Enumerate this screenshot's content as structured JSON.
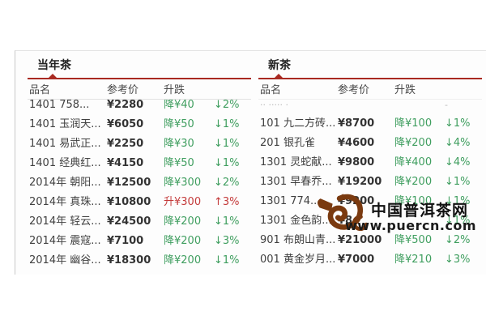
{
  "watermark": {
    "site_name": "中国普洱茶网",
    "site_url": "www.puercn.com",
    "logo": "teapot-dragon-logo"
  },
  "columns": {
    "name": "品名",
    "price": "参考价",
    "change": "升跌"
  },
  "glyphs": {
    "down_arrow": "↓",
    "up_arrow": "↑"
  },
  "colors": {
    "down": "#3f9e5f",
    "up": "#c43b3b",
    "tab_line": "#a92a22",
    "logo_brown": "#7a3a10"
  },
  "tables": [
    {
      "tab": "当年茶",
      "rows": [
        {
          "name": "1401 758...",
          "price": "¥2280",
          "change": "降¥40",
          "dir": "down",
          "pct": "2%"
        },
        {
          "name": "1401 玉润天...",
          "price": "¥6050",
          "change": "降¥50",
          "dir": "down",
          "pct": "1%"
        },
        {
          "name": "1401 易武正...",
          "price": "¥2250",
          "change": "降¥30",
          "dir": "down",
          "pct": "1%"
        },
        {
          "name": "1401 经典红...",
          "price": "¥4150",
          "change": "降¥50",
          "dir": "down",
          "pct": "1%"
        },
        {
          "name": "2014年 朝阳...",
          "price": "¥12500",
          "change": "降¥300",
          "dir": "down",
          "pct": "2%"
        },
        {
          "name": "2014年 真珠...",
          "price": "¥10800",
          "change": "升¥300",
          "dir": "up",
          "pct": "3%"
        },
        {
          "name": "2014年 轻云...",
          "price": "¥24500",
          "change": "降¥200",
          "dir": "down",
          "pct": "1%"
        },
        {
          "name": "2014年 震寇...",
          "price": "¥7100",
          "change": "降¥200",
          "dir": "down",
          "pct": "3%"
        },
        {
          "name": "2014年 幽谷...",
          "price": "¥18300",
          "change": "降¥200",
          "dir": "down",
          "pct": "1%"
        }
      ]
    },
    {
      "tab": "新茶",
      "clipped": {
        "name_dots": "·· ····· ·",
        "pct_dots": "-"
      },
      "rows": [
        {
          "name": "101 九二方砖...",
          "price": "¥8700",
          "change": "降¥100",
          "dir": "down",
          "pct": "1%"
        },
        {
          "name": "201 银孔雀",
          "price": "¥4600",
          "change": "降¥200",
          "dir": "down",
          "pct": "4%"
        },
        {
          "name": "1301 灵蛇献...",
          "price": "¥9800",
          "change": "降¥400",
          "dir": "down",
          "pct": "4%"
        },
        {
          "name": "1301 早春乔...",
          "price": "¥19200",
          "change": "降¥200",
          "dir": "down",
          "pct": "1%"
        },
        {
          "name": "1301 774...",
          "price": "¥9200",
          "change": "降¥100",
          "dir": "down",
          "pct": "1%"
        },
        {
          "name": "1301 金色韵...",
          "price": "¥8",
          "change": "",
          "dir": "down",
          "pct": "1%"
        },
        {
          "name": "901 布朗山青...",
          "price": "¥21000",
          "change": "降¥500",
          "dir": "down",
          "pct": "2%"
        },
        {
          "name": "001 黄金岁月...",
          "price": "¥7000",
          "change": "降¥210",
          "dir": "down",
          "pct": "3%"
        }
      ]
    }
  ]
}
